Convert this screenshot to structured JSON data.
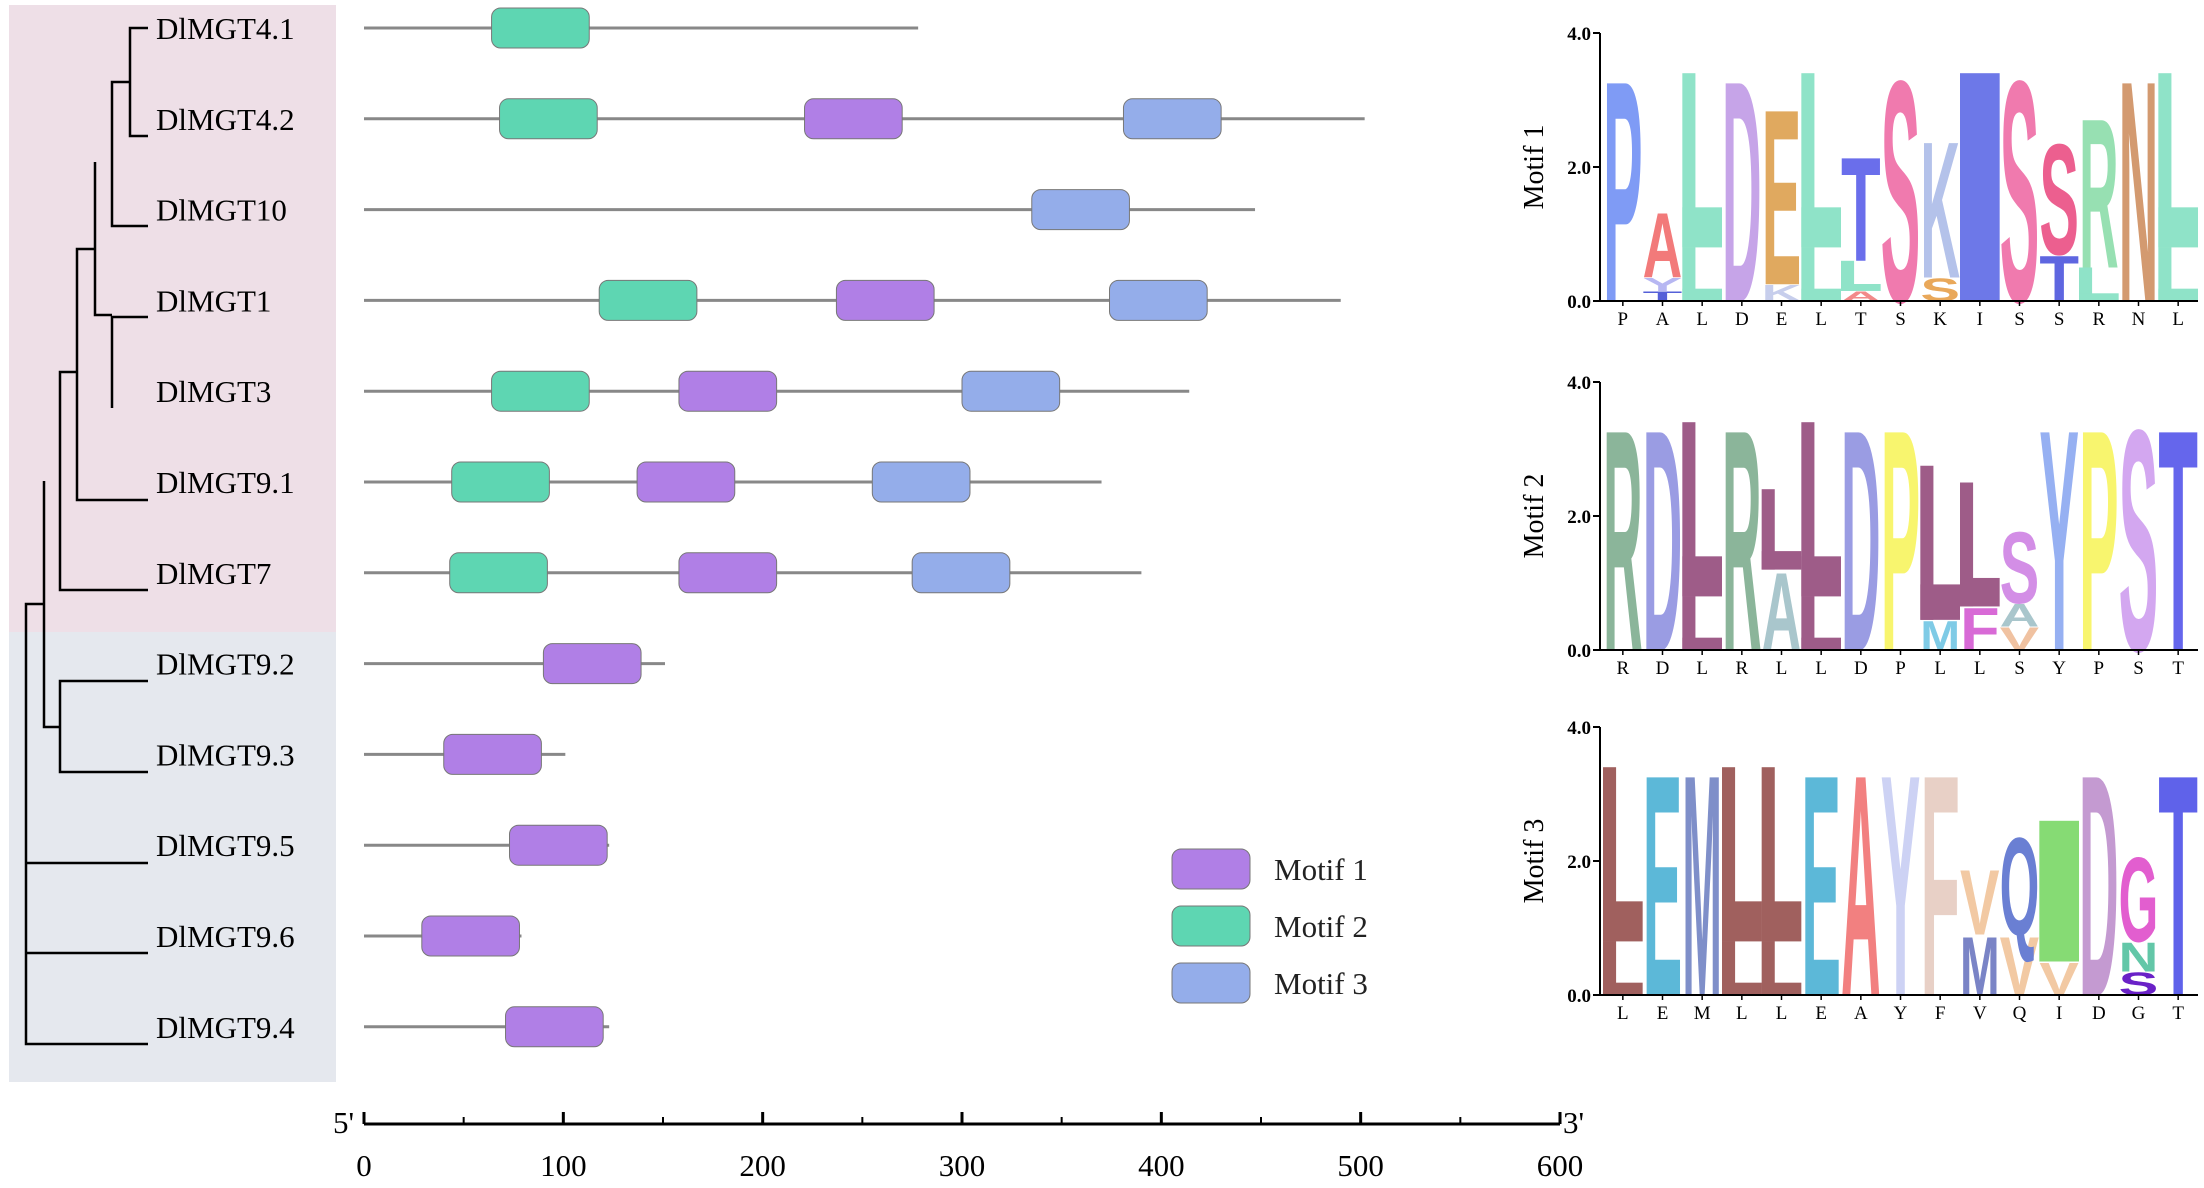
{
  "genes": [
    {
      "name": "DlMGT4.1",
      "length": 278,
      "motifs": [
        {
          "motif": 2,
          "start": 64,
          "end": 113
        }
      ]
    },
    {
      "name": "DlMGT4.2",
      "length": 502,
      "motifs": [
        {
          "motif": 2,
          "start": 68,
          "end": 117
        },
        {
          "motif": 1,
          "start": 221,
          "end": 270
        },
        {
          "motif": 3,
          "start": 381,
          "end": 430
        }
      ]
    },
    {
      "name": "DlMGT10",
      "length": 447,
      "motifs": [
        {
          "motif": 3,
          "start": 335,
          "end": 384
        }
      ]
    },
    {
      "name": "DlMGT1",
      "length": 490,
      "motifs": [
        {
          "motif": 2,
          "start": 118,
          "end": 167
        },
        {
          "motif": 1,
          "start": 237,
          "end": 286
        },
        {
          "motif": 3,
          "start": 374,
          "end": 423
        }
      ]
    },
    {
      "name": "DlMGT3",
      "length": 414,
      "motifs": [
        {
          "motif": 2,
          "start": 64,
          "end": 113
        },
        {
          "motif": 1,
          "start": 158,
          "end": 207
        },
        {
          "motif": 3,
          "start": 300,
          "end": 349
        }
      ]
    },
    {
      "name": "DlMGT9.1",
      "length": 370,
      "motifs": [
        {
          "motif": 2,
          "start": 44,
          "end": 93
        },
        {
          "motif": 1,
          "start": 137,
          "end": 186
        },
        {
          "motif": 3,
          "start": 255,
          "end": 304
        }
      ]
    },
    {
      "name": "DlMGT7",
      "length": 390,
      "motifs": [
        {
          "motif": 2,
          "start": 43,
          "end": 92
        },
        {
          "motif": 1,
          "start": 158,
          "end": 207
        },
        {
          "motif": 3,
          "start": 275,
          "end": 324
        }
      ]
    },
    {
      "name": "DlMGT9.2",
      "length": 151,
      "motifs": [
        {
          "motif": 1,
          "start": 90,
          "end": 139
        }
      ]
    },
    {
      "name": "DlMGT9.3",
      "length": 101,
      "motifs": [
        {
          "motif": 1,
          "start": 40,
          "end": 89
        }
      ]
    },
    {
      "name": "DlMGT9.5",
      "length": 123,
      "motifs": [
        {
          "motif": 1,
          "start": 73,
          "end": 122
        }
      ]
    },
    {
      "name": "DlMGT9.6",
      "length": 79,
      "motifs": [
        {
          "motif": 1,
          "start": 29,
          "end": 78
        }
      ]
    },
    {
      "name": "DlMGT9.4",
      "length": 123,
      "motifs": [
        {
          "motif": 1,
          "start": 71,
          "end": 120
        }
      ]
    }
  ],
  "axis": {
    "min": 0,
    "max": 600,
    "ticks": [
      0,
      100,
      200,
      300,
      400,
      500,
      600
    ],
    "tick_labels": [
      "0",
      "100",
      "200",
      "300",
      "400",
      "500",
      "600"
    ],
    "five_prime": "5'",
    "three_prime": "3'"
  },
  "legend": [
    {
      "motif": 1,
      "label": "Motif 1",
      "color": "#B07FE6"
    },
    {
      "motif": 2,
      "label": "Motif 2",
      "color": "#5ED6B2"
    },
    {
      "motif": 3,
      "label": "Motif 3",
      "color": "#94ADEA"
    }
  ],
  "colors": {
    "clade1_bg": "#EEDFE7",
    "clade2_bg": "#E5E8EE",
    "backbone": "#888888"
  },
  "logo_axis": {
    "top_label": "4.0",
    "mid_label": "2.0",
    "bottom_label": "0.0",
    "ymax": 4.0
  },
  "logos": [
    {
      "title": "Motif 1",
      "consensus": [
        "P",
        "A",
        "L",
        "D",
        "E",
        "L",
        "T",
        "S",
        "K",
        "I",
        "S",
        "S",
        "R",
        "N",
        "L"
      ],
      "columns": [
        [
          {
            "c": "P",
            "h": 3.4,
            "color": "#7F9BF5"
          }
        ],
        [
          {
            "c": "T",
            "h": 0.15,
            "color": "#5560D8"
          },
          {
            "c": "Y",
            "h": 0.2,
            "color": "#B7B7F2"
          },
          {
            "c": "A",
            "h": 1.0,
            "color": "#F27A7A"
          }
        ],
        [
          {
            "c": "L",
            "h": 0.8,
            "color": "#8FE3C8"
          },
          {
            "c": "L",
            "h": 2.6,
            "color": "#8FE3C8"
          }
        ],
        [
          {
            "c": "D",
            "h": 3.4,
            "color": "#C6A4E8"
          }
        ],
        [
          {
            "c": "K",
            "h": 0.25,
            "color": "#C7CEEC"
          },
          {
            "c": "E",
            "h": 2.7,
            "color": "#E0A95F"
          }
        ],
        [
          {
            "c": "L",
            "h": 0.8,
            "color": "#8FE3C8"
          },
          {
            "c": "L",
            "h": 2.6,
            "color": "#8FE3C8"
          }
        ],
        [
          {
            "c": "A",
            "h": 0.15,
            "color": "#F28A8A"
          },
          {
            "c": "L",
            "h": 0.45,
            "color": "#8FE3C8"
          },
          {
            "c": "T",
            "h": 1.6,
            "color": "#6A6EEB"
          }
        ],
        [
          {
            "c": "S",
            "h": 3.4,
            "color": "#F07AAE"
          }
        ],
        [
          {
            "c": "S",
            "h": 0.35,
            "color": "#E9A85A"
          },
          {
            "c": "K",
            "h": 2.1,
            "color": "#B4C2EA"
          }
        ],
        [
          {
            "c": "I",
            "h": 3.4,
            "color": "#6D78E8"
          }
        ],
        [
          {
            "c": "S",
            "h": 3.4,
            "color": "#F07AAE"
          }
        ],
        [
          {
            "c": "T",
            "h": 0.7,
            "color": "#5E66E0"
          },
          {
            "c": "S",
            "h": 1.7,
            "color": "#EC5F8F"
          }
        ],
        [
          {
            "c": "L",
            "h": 0.5,
            "color": "#8FE3C8"
          },
          {
            "c": "R",
            "h": 2.3,
            "color": "#97E0B2"
          }
        ],
        [
          {
            "c": "N",
            "h": 3.4,
            "color": "#D39A70"
          }
        ],
        [
          {
            "c": "L",
            "h": 0.8,
            "color": "#8FE3C8"
          },
          {
            "c": "L",
            "h": 2.6,
            "color": "#8FE3C8"
          }
        ]
      ]
    },
    {
      "title": "Motif 2",
      "consensus": [
        "R",
        "D",
        "L",
        "R",
        "L",
        "L",
        "D",
        "P",
        "L",
        "L",
        "S",
        "Y",
        "P",
        "S",
        "T"
      ],
      "columns": [
        [
          {
            "c": "R",
            "h": 3.4,
            "color": "#8BB59A"
          }
        ],
        [
          {
            "c": "D",
            "h": 3.4,
            "color": "#9A9CE3"
          }
        ],
        [
          {
            "c": "L",
            "h": 0.8,
            "color": "#9E5C88"
          },
          {
            "c": "L",
            "h": 2.6,
            "color": "#9E5C88"
          }
        ],
        [
          {
            "c": "R",
            "h": 3.4,
            "color": "#8BB59A"
          }
        ],
        [
          {
            "c": "A",
            "h": 1.2,
            "color": "#A9C6CC"
          },
          {
            "c": "L",
            "h": 1.2,
            "color": "#9E5C88"
          }
        ],
        [
          {
            "c": "L",
            "h": 0.8,
            "color": "#9E5C88"
          },
          {
            "c": "L",
            "h": 2.6,
            "color": "#9E5C88"
          }
        ],
        [
          {
            "c": "D",
            "h": 3.4,
            "color": "#9A9CE3"
          }
        ],
        [
          {
            "c": "P",
            "h": 3.4,
            "color": "#F8F56E"
          }
        ],
        [
          {
            "c": "M",
            "h": 0.45,
            "color": "#7FCBE6"
          },
          {
            "c": "L",
            "h": 2.3,
            "color": "#9E5C88"
          }
        ],
        [
          {
            "c": "F",
            "h": 0.65,
            "color": "#D86AD6"
          },
          {
            "c": "L",
            "h": 1.85,
            "color": "#9E5C88"
          }
        ],
        [
          {
            "c": "V",
            "h": 0.35,
            "color": "#F0C2A1"
          },
          {
            "c": "A",
            "h": 0.35,
            "color": "#A9C6CC"
          },
          {
            "c": "S",
            "h": 1.1,
            "color": "#D38EE6"
          }
        ],
        [
          {
            "c": "Y",
            "h": 3.4,
            "color": "#96B0F2"
          }
        ],
        [
          {
            "c": "P",
            "h": 3.4,
            "color": "#F8F56E"
          }
        ],
        [
          {
            "c": "S",
            "h": 3.4,
            "color": "#D3A7F0"
          }
        ],
        [
          {
            "c": "T",
            "h": 3.4,
            "color": "#6566EC"
          }
        ]
      ]
    },
    {
      "title": "Motif 3",
      "consensus": [
        "L",
        "E",
        "M",
        "L",
        "L",
        "E",
        "A",
        "Y",
        "F",
        "V",
        "Q",
        "I",
        "D",
        "G",
        "T"
      ],
      "columns": [
        [
          {
            "c": "L",
            "h": 0.8,
            "color": "#A0605E"
          },
          {
            "c": "L",
            "h": 2.6,
            "color": "#A0605E"
          }
        ],
        [
          {
            "c": "E",
            "h": 3.4,
            "color": "#5CB8D8"
          }
        ],
        [
          {
            "c": "M",
            "h": 3.4,
            "color": "#7F8FC9"
          }
        ],
        [
          {
            "c": "L",
            "h": 0.8,
            "color": "#A0605E"
          },
          {
            "c": "L",
            "h": 2.6,
            "color": "#A0605E"
          }
        ],
        [
          {
            "c": "L",
            "h": 0.8,
            "color": "#A0605E"
          },
          {
            "c": "L",
            "h": 2.6,
            "color": "#A0605E"
          }
        ],
        [
          {
            "c": "E",
            "h": 3.4,
            "color": "#5CB8D8"
          }
        ],
        [
          {
            "c": "A",
            "h": 3.4,
            "color": "#F28080"
          }
        ],
        [
          {
            "c": "Y",
            "h": 3.4,
            "color": "#CDD2F4"
          }
        ],
        [
          {
            "c": "F",
            "h": 3.4,
            "color": "#E8D0C6"
          }
        ],
        [
          {
            "c": "M",
            "h": 0.9,
            "color": "#7A84C6"
          },
          {
            "c": "V",
            "h": 1.0,
            "color": "#F2C9A3"
          }
        ],
        [
          {
            "c": "V",
            "h": 0.9,
            "color": "#F2C9A3"
          },
          {
            "c": "Q",
            "h": 1.5,
            "color": "#6A7FD3"
          }
        ],
        [
          {
            "c": "V",
            "h": 0.5,
            "color": "#F2C9A3"
          },
          {
            "c": "I",
            "h": 2.1,
            "color": "#86DB74"
          }
        ],
        [
          {
            "c": "D",
            "h": 3.4,
            "color": "#C49AD1"
          }
        ],
        [
          {
            "c": "S",
            "h": 0.35,
            "color": "#6A21C7"
          },
          {
            "c": "N",
            "h": 0.45,
            "color": "#63C7A8"
          },
          {
            "c": "G",
            "h": 1.3,
            "color": "#E25ECF"
          }
        ],
        [
          {
            "c": "T",
            "h": 3.4,
            "color": "#5F62EA"
          }
        ]
      ]
    }
  ]
}
